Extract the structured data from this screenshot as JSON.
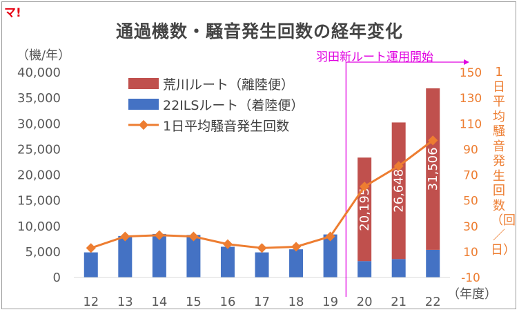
{
  "brand_mark": "マ!",
  "chart_data": {
    "type": "bar",
    "title": "通過機数・騒音発生回数の経年変化",
    "ylabel_left": "（機/年）",
    "ylabel_right": "1日平均騒音発生回数（回／日）",
    "xlabel": "（年度）",
    "categories": [
      "12",
      "13",
      "14",
      "15",
      "16",
      "17",
      "18",
      "19",
      "20",
      "21",
      "22"
    ],
    "ylim_left": [
      0,
      40000
    ],
    "yticks_left": [
      "0",
      "5,000",
      "10,000",
      "15,000",
      "20,000",
      "25,000",
      "30,000",
      "35,000",
      "40,000"
    ],
    "ylim_right": [
      -10,
      150
    ],
    "yticks_right": [
      "-10",
      "10",
      "30",
      "50",
      "70",
      "90",
      "110",
      "130",
      "150"
    ],
    "series": [
      {
        "name": "荒川ルート（離陸便）",
        "type": "bar",
        "color": "#c0504d",
        "values": [
          0,
          0,
          0,
          0,
          0,
          0,
          0,
          0,
          20195,
          26648,
          31506
        ],
        "labels": [
          "",
          "",
          "",
          "",
          "",
          "",
          "",
          "",
          "20,195",
          "26,648",
          "31,506"
        ]
      },
      {
        "name": "22ILSルート（着陸便）",
        "type": "bar",
        "color": "#4472c4",
        "values": [
          4900,
          8100,
          8500,
          8300,
          6000,
          4900,
          5500,
          8400,
          3200,
          3600,
          5400
        ]
      },
      {
        "name": "1日平均騒音発生回数",
        "type": "line",
        "axis": "right",
        "color": "#ed7d31",
        "values": [
          13,
          22,
          23,
          22,
          16,
          13,
          14,
          22,
          61,
          77,
          97
        ]
      }
    ],
    "annotation": "羽田新ルート運用開始",
    "annotation_color": "#e000e0",
    "legend_position": "upper-left",
    "grid": false
  }
}
